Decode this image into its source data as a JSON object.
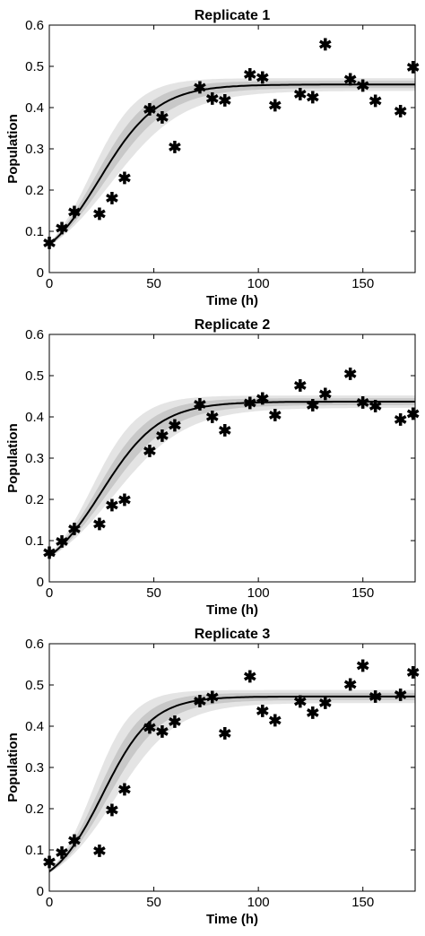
{
  "chart_data": [
    {
      "type": "line",
      "title": "Replicate 1",
      "xlabel": "Time (h)",
      "ylabel": "Population",
      "xlim": [
        0,
        175
      ],
      "ylim": [
        0,
        0.6
      ],
      "xticks": [
        0,
        50,
        100,
        150
      ],
      "yticks": [
        0,
        0.1,
        0.2,
        0.3,
        0.4,
        0.5,
        0.6
      ],
      "grid": false,
      "fit_model": {
        "y0": 0.068,
        "K": 0.456,
        "r": 0.072
      },
      "band_colors": {
        "outer": "#e4e4e4",
        "inner": "#c8c8c8",
        "line": "#000000"
      },
      "series": [
        {
          "marker": "asterisk",
          "x": [
            0,
            6,
            12,
            24,
            30,
            36,
            48,
            54,
            60,
            72,
            78,
            84,
            96,
            102,
            108,
            120,
            126,
            132,
            144,
            150,
            156,
            168,
            174
          ],
          "y": [
            0.071,
            0.107,
            0.146,
            0.141,
            0.179,
            0.228,
            0.395,
            0.375,
            0.303,
            0.448,
            0.421,
            0.416,
            0.479,
            0.472,
            0.404,
            0.432,
            0.424,
            0.552,
            0.467,
            0.452,
            0.415,
            0.39,
            0.497
          ]
        }
      ]
    },
    {
      "type": "line",
      "title": "Replicate 2",
      "xlabel": "Time (h)",
      "ylabel": "Population",
      "xlim": [
        0,
        175
      ],
      "ylim": [
        0,
        0.6
      ],
      "xticks": [
        0,
        50,
        100,
        150
      ],
      "yticks": [
        0,
        0.1,
        0.2,
        0.3,
        0.4,
        0.5,
        0.6
      ],
      "grid": false,
      "fit_model": {
        "y0": 0.062,
        "K": 0.437,
        "r": 0.072
      },
      "band_colors": {
        "outer": "#e4e4e4",
        "inner": "#c8c8c8",
        "line": "#000000"
      },
      "series": [
        {
          "marker": "asterisk",
          "x": [
            0,
            6,
            12,
            24,
            30,
            36,
            48,
            54,
            60,
            72,
            78,
            84,
            96,
            102,
            108,
            120,
            126,
            132,
            144,
            150,
            156,
            168,
            174
          ],
          "y": [
            0.07,
            0.097,
            0.127,
            0.139,
            0.185,
            0.198,
            0.316,
            0.353,
            0.378,
            0.429,
            0.399,
            0.366,
            0.433,
            0.444,
            0.403,
            0.475,
            0.427,
            0.454,
            0.503,
            0.434,
            0.425,
            0.392,
            0.406
          ]
        }
      ]
    },
    {
      "type": "line",
      "title": "Replicate 3",
      "xlabel": "Time (h)",
      "ylabel": "Population",
      "xlim": [
        0,
        175
      ],
      "ylim": [
        0,
        0.6
      ],
      "xticks": [
        0,
        50,
        100,
        150
      ],
      "yticks": [
        0,
        0.1,
        0.2,
        0.3,
        0.4,
        0.5,
        0.6
      ],
      "grid": false,
      "fit_model": {
        "y0": 0.048,
        "K": 0.472,
        "r": 0.085
      },
      "band_colors": {
        "outer": "#e4e4e4",
        "inner": "#c8c8c8",
        "line": "#000000"
      },
      "series": [
        {
          "marker": "asterisk",
          "x": [
            0,
            6,
            12,
            24,
            30,
            36,
            48,
            54,
            60,
            72,
            78,
            84,
            96,
            102,
            108,
            120,
            126,
            132,
            144,
            150,
            156,
            168,
            174
          ],
          "y": [
            0.07,
            0.092,
            0.122,
            0.097,
            0.196,
            0.246,
            0.396,
            0.386,
            0.41,
            0.46,
            0.47,
            0.381,
            0.52,
            0.436,
            0.413,
            0.459,
            0.432,
            0.455,
            0.5,
            0.546,
            0.471,
            0.475,
            0.529
          ]
        }
      ]
    }
  ]
}
